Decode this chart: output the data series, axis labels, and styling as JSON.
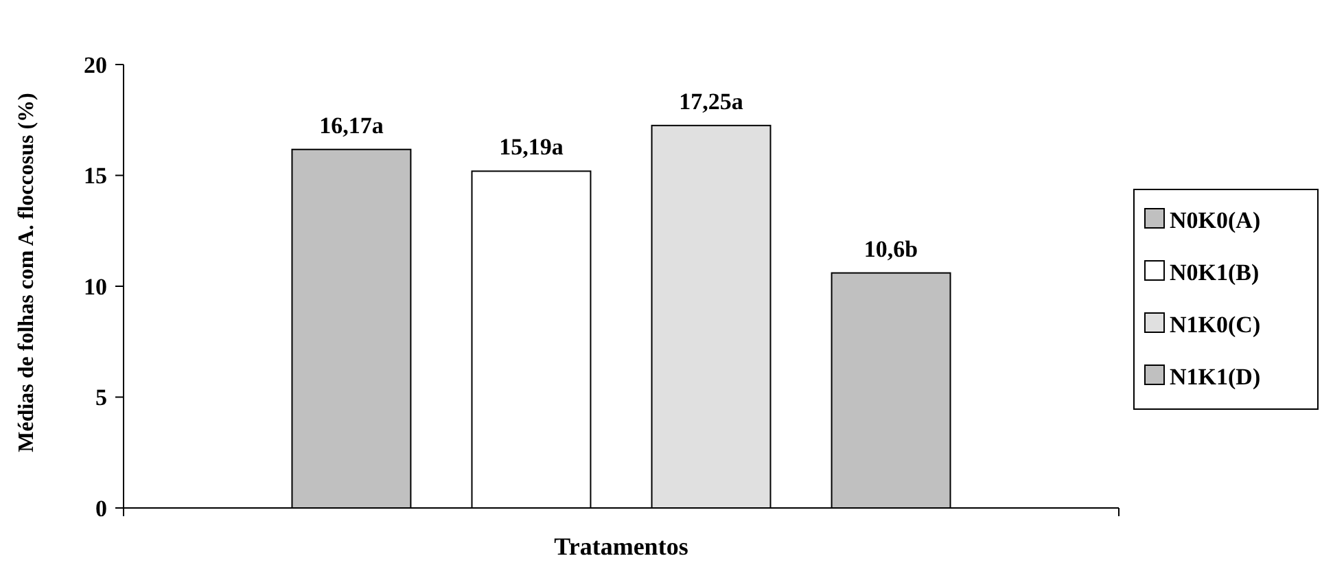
{
  "chart_data": {
    "type": "bar",
    "xlabel": "Tratamentos",
    "ylabel": "Médias de folhas com A. floccosus (%)",
    "categories": [
      null
    ],
    "series": [
      {
        "name": "N0K0(A)",
        "color": "#c0c0c0",
        "values": [
          16.17
        ],
        "value_labels": [
          "16,17a"
        ]
      },
      {
        "name": "N0K1(B)",
        "color": "#ffffff",
        "values": [
          15.19
        ],
        "value_labels": [
          "15,19a"
        ]
      },
      {
        "name": "N1K0(C)",
        "color": "#e0e0e0",
        "values": [
          17.25
        ],
        "value_labels": [
          "17,25a"
        ]
      },
      {
        "name": "N1K1(D)",
        "color": "#c0c0c0",
        "values": [
          10.6
        ],
        "value_labels": [
          "10,6b"
        ]
      }
    ],
    "ylim": [
      0,
      20
    ],
    "yticks": [
      0,
      5,
      10,
      15,
      20
    ],
    "grid": false,
    "legend": "right"
  }
}
